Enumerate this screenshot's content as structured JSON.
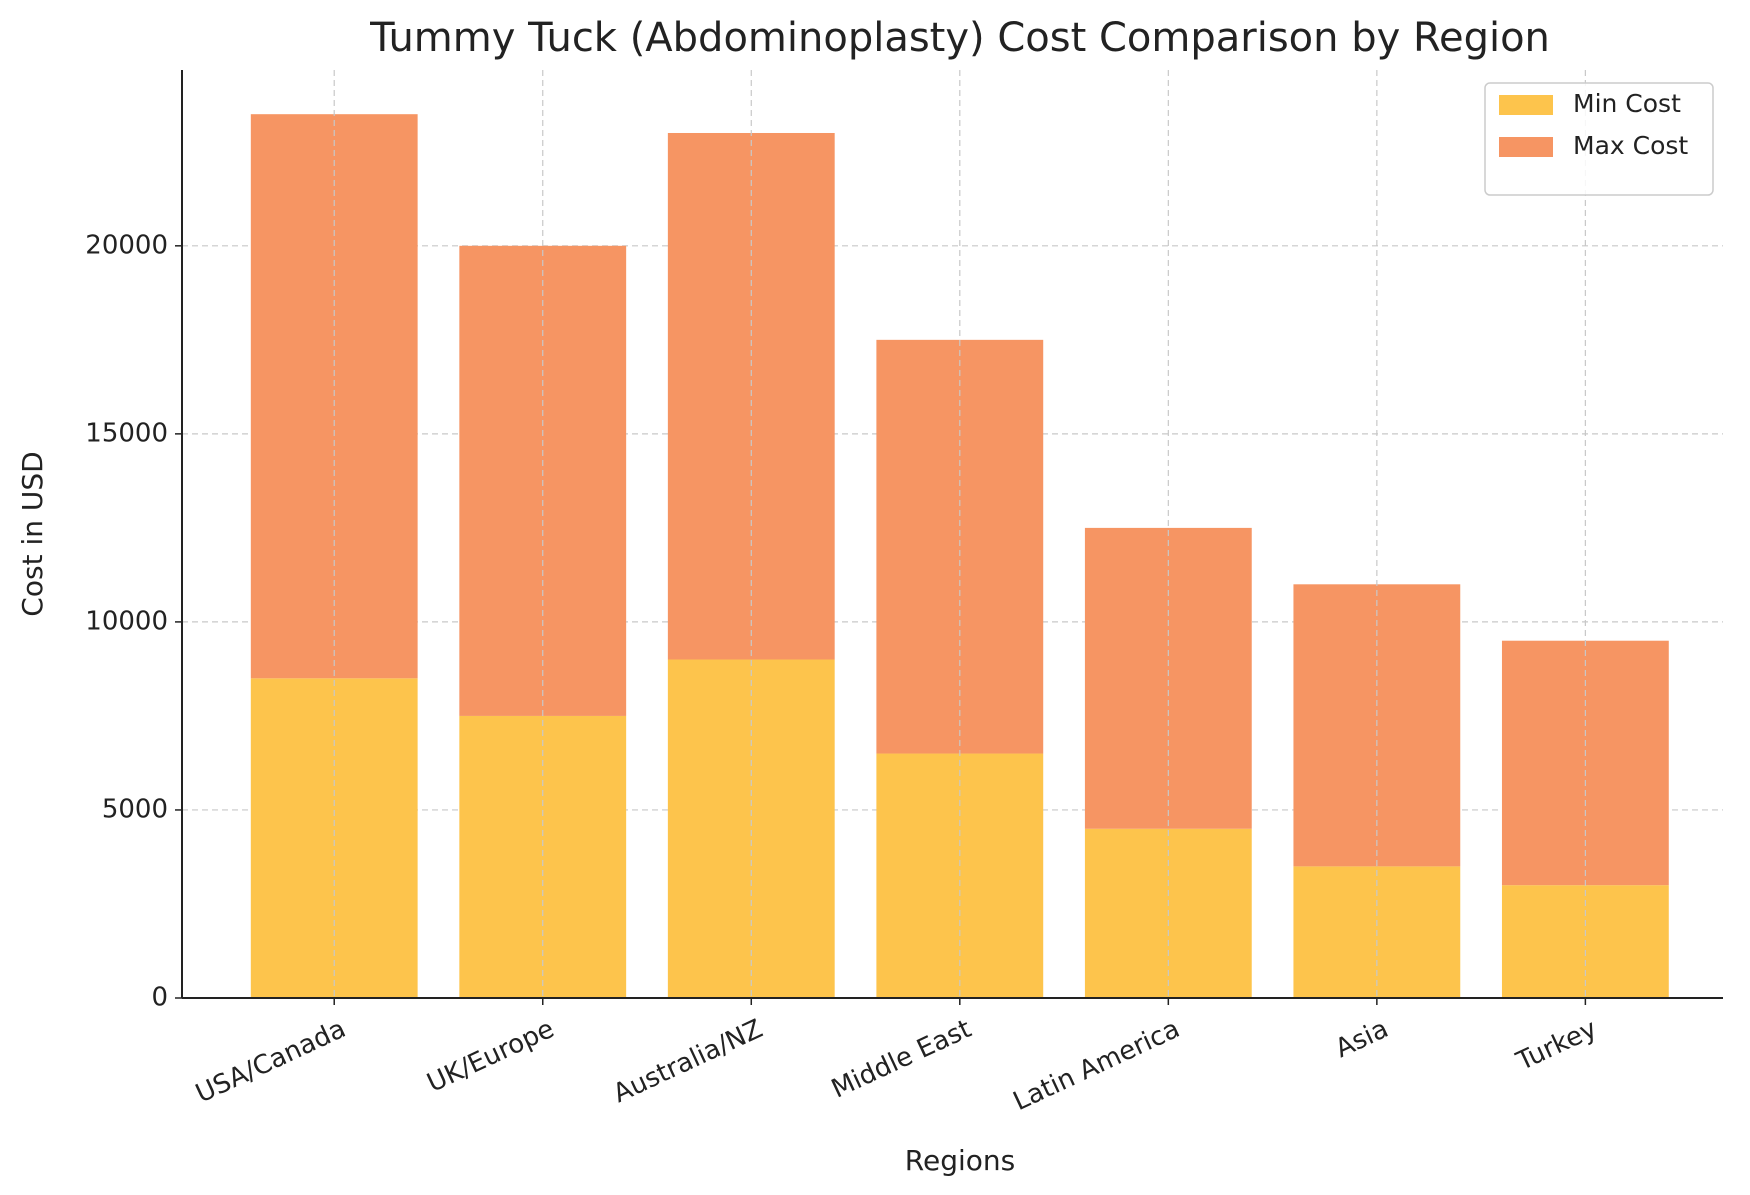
{
  "chart_data": {
    "type": "bar",
    "stacked": true,
    "title": "Tummy Tuck (Abdominoplasty) Cost Comparison by Region",
    "xlabel": "Regions",
    "ylabel": "Cost in USD",
    "categories": [
      "USA/Canada",
      "UK/Europe",
      "Australia/NZ",
      "Middle East",
      "Latin America",
      "Asia",
      "Turkey"
    ],
    "series": [
      {
        "name": "Min Cost",
        "color": "#fdc44c",
        "values": [
          8500,
          7500,
          9000,
          6500,
          4500,
          3500,
          3000
        ]
      },
      {
        "name": "Max Cost",
        "color": "#f69563",
        "values": [
          15000,
          12500,
          14000,
          11000,
          8000,
          7500,
          6500
        ]
      }
    ],
    "ylim": [
      0,
      24675
    ],
    "yticks": [
      0,
      5000,
      10000,
      15000,
      20000
    ],
    "grid": true,
    "legend": "upper right"
  }
}
